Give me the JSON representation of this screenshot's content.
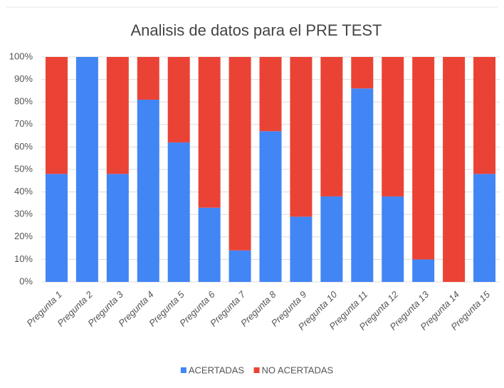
{
  "chart_data": {
    "type": "stacked_bar",
    "title": "Analisis de datos para el PRE TEST",
    "categories": [
      "Pregunta 1",
      "Pregunta 2",
      "Pregunta 3",
      "Pregunta 4",
      "Pregunta 5",
      "Pregunta 6",
      "Pregunta 7",
      "Pregunta 8",
      "Pregunta 9",
      "Pregunta 10",
      "Pregunta 11",
      "Pregunta 12",
      "Pregunta 13",
      "Pregunta 14",
      "Pregunta 15"
    ],
    "series": [
      {
        "name": "ACERTADAS",
        "color": "#4285f4",
        "values": [
          48,
          100,
          48,
          81,
          62,
          33,
          14,
          67,
          29,
          38,
          86,
          38,
          10,
          0,
          48
        ]
      },
      {
        "name": "NO ACERTADAS",
        "color": "#ea4335",
        "values": [
          52,
          0,
          52,
          19,
          38,
          67,
          86,
          33,
          71,
          62,
          14,
          62,
          90,
          100,
          52
        ]
      }
    ],
    "ylim": [
      0,
      100
    ],
    "yticks": [
      {
        "value": 0,
        "label": "0%"
      },
      {
        "value": 10,
        "label": "10%"
      },
      {
        "value": 20,
        "label": "20%"
      },
      {
        "value": 30,
        "label": "30%"
      },
      {
        "value": 40,
        "label": "40%"
      },
      {
        "value": 50,
        "label": "50%"
      },
      {
        "value": 60,
        "label": "60%"
      },
      {
        "value": 70,
        "label": "70%"
      },
      {
        "value": 80,
        "label": "80%"
      },
      {
        "value": 90,
        "label": "90%"
      },
      {
        "value": 100,
        "label": "100%"
      }
    ],
    "grid": true,
    "legend": "bottom"
  }
}
